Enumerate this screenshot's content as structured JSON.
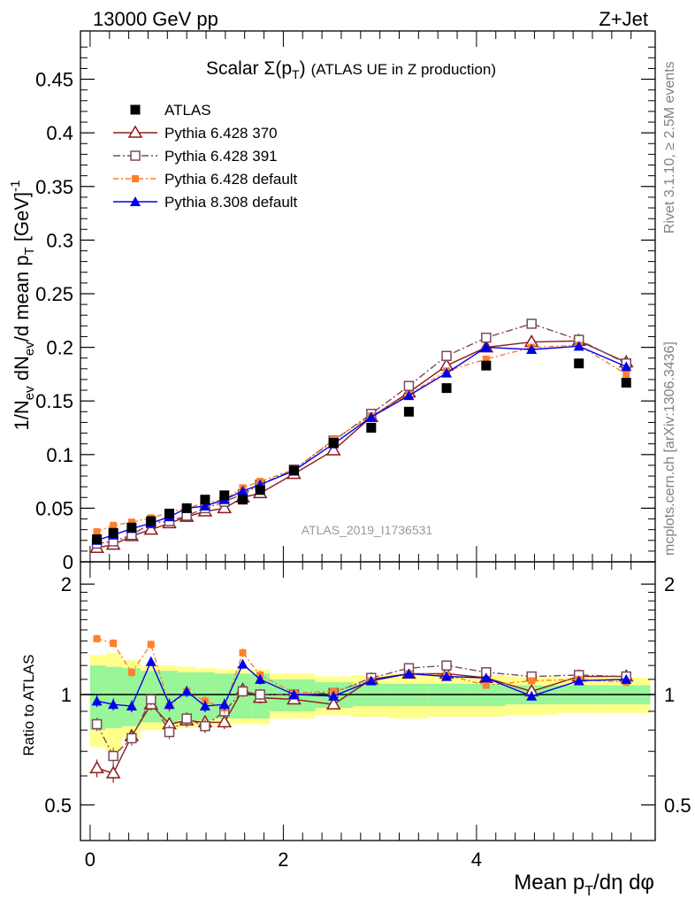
{
  "header": {
    "left": "13000 GeV pp",
    "right": "Z+Jet"
  },
  "side": {
    "top": "Rivet 3.1.10, ≥ 2.5M events",
    "bottom": "mcplots.cern.ch [arXiv:1306.3436]"
  },
  "chart_data": {
    "type": "line",
    "title": "Scalar Σ(p_T) (ATLAS UE in Z production)",
    "analysis_tag": "ATLAS_2019_I1736531",
    "xlabel": "Mean p_T/dη dφ",
    "ylabel": "1/N_ev dN_ev/d mean p_T [GeV]^-1",
    "ratio_ylabel": "Ratio to ATLAS",
    "xlim": [
      -0.1,
      5.85
    ],
    "ylim": [
      0,
      0.495
    ],
    "ratio_ylim": [
      0.4,
      2.3
    ],
    "x_ticks": [
      "0",
      "2",
      "4"
    ],
    "y_ticks": [
      "0",
      "0.05",
      "0.1",
      "0.15",
      "0.2",
      "0.25",
      "0.3",
      "0.35",
      "0.4",
      "0.45"
    ],
    "ratio_y_ticks": [
      "0.5",
      "1",
      "2"
    ],
    "x": [
      0.07,
      0.24,
      0.43,
      0.63,
      0.82,
      1.0,
      1.19,
      1.39,
      1.58,
      1.76,
      2.11,
      2.52,
      2.91,
      3.3,
      3.69,
      4.1,
      4.57,
      5.06,
      5.55
    ],
    "atlas": [
      0.021,
      0.027,
      0.032,
      0.038,
      0.045,
      0.05,
      0.058,
      0.062,
      0.058,
      0.067,
      0.085,
      0.111,
      0.125,
      0.14,
      0.162,
      0.183,
      null,
      0.185,
      0.167
    ],
    "series": [
      {
        "name": "Pythia 6.428 370",
        "color": "#8b1a1a",
        "values": [
          0.013,
          0.016,
          0.024,
          0.03,
          0.036,
          0.042,
          0.047,
          0.05,
          0.06,
          0.064,
          0.082,
          0.104,
          0.135,
          0.158,
          0.183,
          0.2,
          0.205,
          0.206,
          0.186
        ],
        "ratio": [
          0.63,
          0.61,
          0.77,
          0.94,
          0.83,
          0.85,
          0.84,
          0.84,
          1.03,
          0.98,
          0.97,
          0.94,
          1.1,
          1.14,
          1.14,
          1.11,
          1.02,
          1.12,
          1.12
        ]
      },
      {
        "name": "Pythia 6.428 391",
        "color": "#7a4a5a",
        "values": [
          0.017,
          0.019,
          0.025,
          0.036,
          0.038,
          0.043,
          0.05,
          0.056,
          0.063,
          0.072,
          0.086,
          0.113,
          0.138,
          0.164,
          0.192,
          0.209,
          0.222,
          0.207,
          0.185
        ],
        "ratio": [
          0.83,
          0.68,
          0.76,
          0.97,
          0.79,
          0.86,
          0.82,
          0.9,
          1.02,
          1.0,
          1.0,
          1.01,
          1.11,
          1.18,
          1.2,
          1.15,
          1.12,
          1.13,
          1.12
        ]
      },
      {
        "name": "Pythia 6.428 default",
        "color": "#ff7f2a",
        "values": [
          0.028,
          0.034,
          0.037,
          0.041,
          0.046,
          0.05,
          0.055,
          0.058,
          0.069,
          0.075,
          0.086,
          0.114,
          0.136,
          0.156,
          0.178,
          0.189,
          0.2,
          0.202,
          0.175
        ],
        "ratio": [
          1.42,
          1.38,
          1.15,
          1.37,
          0.93,
          1.02,
          0.96,
          0.92,
          1.3,
          1.13,
          1.01,
          1.02,
          1.09,
          1.14,
          1.13,
          1.06,
          1.09,
          1.1,
          1.08
        ]
      },
      {
        "name": "Pythia 8.308 default",
        "color": "#0000ee",
        "values": [
          0.02,
          0.025,
          0.031,
          0.036,
          0.042,
          0.05,
          0.052,
          0.058,
          0.066,
          0.072,
          0.085,
          0.11,
          0.135,
          0.155,
          0.176,
          0.2,
          0.198,
          0.201,
          0.182
        ],
        "ratio": [
          0.96,
          0.94,
          0.93,
          1.23,
          0.94,
          1.02,
          0.93,
          0.94,
          1.21,
          1.1,
          1.0,
          0.99,
          1.09,
          1.14,
          1.12,
          1.11,
          0.99,
          1.09,
          1.1
        ]
      }
    ],
    "band_edges": [
      0.0,
      0.16,
      0.33,
      0.52,
      0.72,
      0.91,
      1.1,
      1.29,
      1.48,
      1.67,
      1.86,
      2.33,
      2.72,
      3.1,
      3.5,
      3.9,
      4.3,
      4.84,
      5.3,
      5.8
    ],
    "band_stat_halfwidth": [
      0.2,
      0.19,
      0.18,
      0.16,
      0.16,
      0.15,
      0.15,
      0.14,
      0.14,
      0.14,
      0.1,
      0.08,
      0.07,
      0.07,
      0.07,
      0.07,
      0.06,
      0.06,
      0.06
    ],
    "band_syst_halfwidth": [
      0.28,
      0.3,
      0.24,
      0.2,
      0.2,
      0.19,
      0.18,
      0.17,
      0.17,
      0.17,
      0.14,
      0.12,
      0.13,
      0.14,
      0.13,
      0.13,
      0.12,
      0.11,
      0.11
    ],
    "legend_placement": "top-left"
  }
}
